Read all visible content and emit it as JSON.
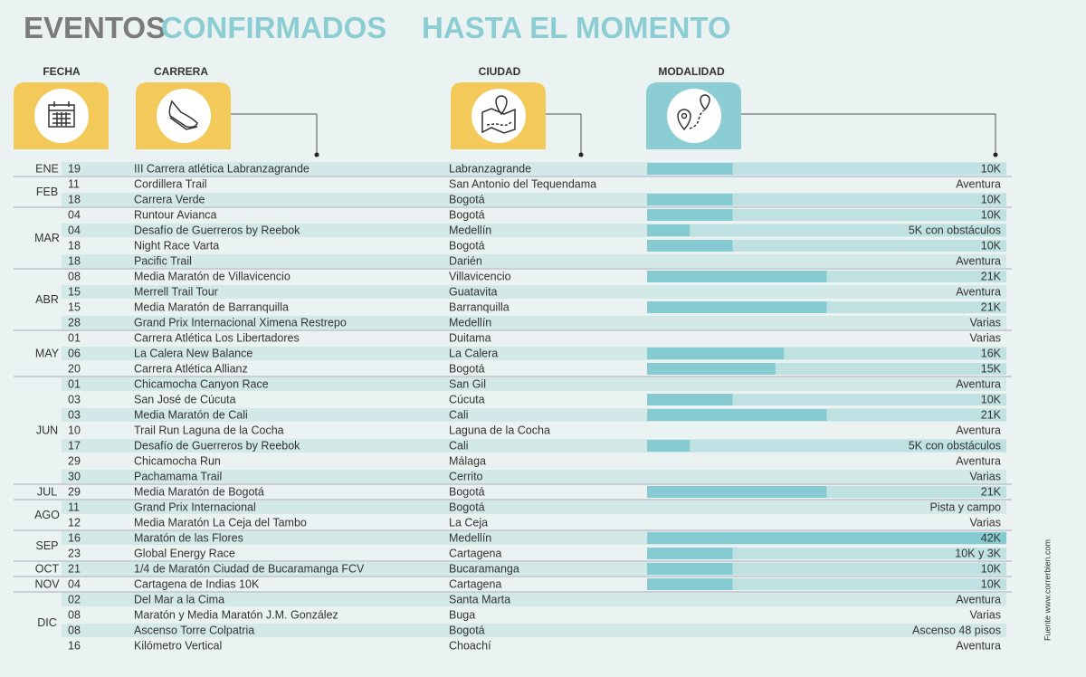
{
  "header": {
    "title_1": "EVENTOS",
    "title_2": "CONFIRMADOS",
    "title_3": "HASTA EL MOMENTO"
  },
  "columns": {
    "date": "FECHA",
    "race": "CARRERA",
    "city": "CIUDAD",
    "modality": "MODALIDAD"
  },
  "months": [
    {
      "month": "ENE",
      "events": [
        {
          "day": "19",
          "race": "III Carrera atlética Labranzagrande",
          "city": "Labranzagrande",
          "modality": "10K"
        }
      ]
    },
    {
      "month": "FEB",
      "events": [
        {
          "day": "11",
          "race": "Cordillera Trail",
          "city": "San Antonio del Tequendama",
          "modality": "Aventura"
        },
        {
          "day": "18",
          "race": "Carrera Verde",
          "city": "Bogotá",
          "modality": "10K"
        }
      ]
    },
    {
      "month": "MAR",
      "events": [
        {
          "day": "04",
          "race": "Runtour Avianca",
          "city": "Bogotá",
          "modality": "10K"
        },
        {
          "day": "04",
          "race": "Desafío de Guerreros by Reebok",
          "city": "Medellín",
          "modality": "5K con obstáculos"
        },
        {
          "day": "18",
          "race": "Night Race Varta",
          "city": "Bogotá",
          "modality": "10K"
        },
        {
          "day": "18",
          "race": "Pacific Trail",
          "city": "Darién",
          "modality": "Aventura"
        }
      ]
    },
    {
      "month": "ABR",
      "events": [
        {
          "day": "08",
          "race": "Media Maratón de Villavicencio",
          "city": "Villavicencio",
          "modality": "21K"
        },
        {
          "day": "15",
          "race": "Merrell Trail Tour",
          "city": "Guatavita",
          "modality": "Aventura"
        },
        {
          "day": "15",
          "race": "Media Maratón de Barranquilla",
          "city": "Barranquilla",
          "modality": "21K"
        },
        {
          "day": "28",
          "race": "Grand Prix Internacional Ximena Restrepo",
          "city": "Medellín",
          "modality": "Varias"
        }
      ]
    },
    {
      "month": "MAY",
      "events": [
        {
          "day": "01",
          "race": "Carrera Atlética Los Libertadores",
          "city": "Duitama",
          "modality": "Varias"
        },
        {
          "day": "06",
          "race": "La Calera New Balance",
          "city": "La Calera",
          "modality": "16K"
        },
        {
          "day": "20",
          "race": "Carrera Atlética Allianz",
          "city": "Bogotá",
          "modality": "15K"
        }
      ]
    },
    {
      "month": "JUN",
      "events": [
        {
          "day": "01",
          "race": "Chicamocha Canyon Race",
          "city": "San Gil",
          "modality": "Aventura"
        },
        {
          "day": "03",
          "race": "San José de Cúcuta",
          "city": "Cúcuta",
          "modality": "10K"
        },
        {
          "day": "03",
          "race": "Media Maratón de Cali",
          "city": "Cali",
          "modality": "21K"
        },
        {
          "day": "10",
          "race": "Trail Run Laguna de la Cocha",
          "city": "Laguna de la Cocha",
          "modality": "Aventura"
        },
        {
          "day": "17",
          "race": "Desafío de Guerreros by Reebok",
          "city": "Cali",
          "modality": "5K con obstáculos"
        },
        {
          "day": "29",
          "race": "Chicamocha Run",
          "city": "Málaga",
          "modality": "Aventura"
        },
        {
          "day": "30",
          "race": "Pachamama Trail",
          "city": "Cerrito",
          "modality": "Varias"
        }
      ]
    },
    {
      "month": "JUL",
      "events": [
        {
          "day": "29",
          "race": "Media Maratón de Bogotá",
          "city": "Bogotá",
          "modality": "21K"
        }
      ]
    },
    {
      "month": "AGO",
      "events": [
        {
          "day": "11",
          "race": "Grand Prix Internacional",
          "city": "Bogotá",
          "modality": "Pista y campo"
        },
        {
          "day": "12",
          "race": "Media Maratón La Ceja del Tambo",
          "city": "La Ceja",
          "modality": "Varias"
        }
      ]
    },
    {
      "month": "SEP",
      "events": [
        {
          "day": "16",
          "race": "Maratón de las Flores",
          "city": "Medellín",
          "modality": "42K"
        },
        {
          "day": "23",
          "race": "Global Energy Race",
          "city": "Cartagena",
          "modality": "10K y 3K"
        }
      ]
    },
    {
      "month": "OCT",
      "events": [
        {
          "day": "21",
          "race": "1/4 de Maratón Ciudad de Bucaramanga FCV",
          "city": "Bucaramanga",
          "modality": "10K"
        }
      ]
    },
    {
      "month": "NOV",
      "events": [
        {
          "day": "04",
          "race": "Cartagena de Indias 10K",
          "city": "Cartagena",
          "modality": "10K"
        }
      ]
    },
    {
      "month": "DIC",
      "events": [
        {
          "day": "02",
          "race": "Del Mar a la Cima",
          "city": "Santa Marta",
          "modality": "Aventura"
        },
        {
          "day": "08",
          "race": "Maratón y Media Maratón J.M. González",
          "city": "Buga",
          "modality": "Varias"
        },
        {
          "day": "08",
          "race": "Ascenso Torre Colpatria",
          "city": "Bogotá",
          "modality": "Ascenso 48 pisos"
        },
        {
          "day": "16",
          "race": "Kilómetro Vertical",
          "city": "Choachí",
          "modality": "Aventura"
        }
      ]
    }
  ],
  "source": "Fuente www.correrbien.com"
}
